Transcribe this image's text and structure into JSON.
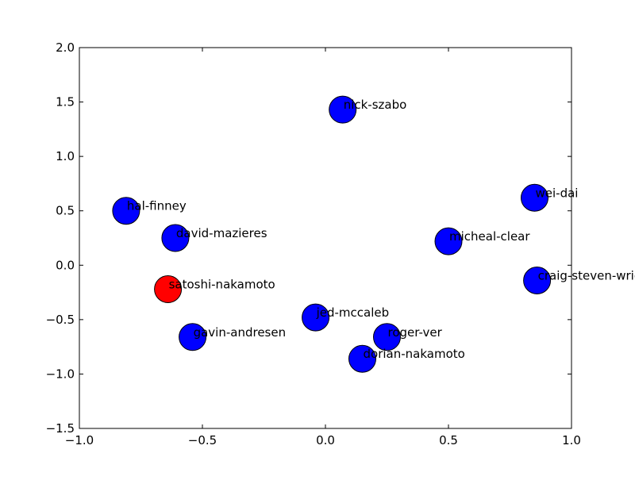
{
  "chart_data": {
    "type": "scatter",
    "title": "",
    "xlabel": "",
    "ylabel": "",
    "xlim": [
      -1.0,
      1.0
    ],
    "ylim": [
      -1.5,
      2.0
    ],
    "xticks": [
      -1.0,
      -0.5,
      0.0,
      0.5,
      1.0
    ],
    "xtick_labels": [
      "−1.0",
      "−0.5",
      "0.0",
      "0.5",
      "1.0"
    ],
    "yticks": [
      -1.5,
      -1.0,
      -0.5,
      0.0,
      0.5,
      1.0,
      1.5,
      2.0
    ],
    "ytick_labels": [
      "−1.5",
      "−1.0",
      "−0.5",
      "0.0",
      "0.5",
      "1.0",
      "1.5",
      "2.0"
    ],
    "grid": false,
    "colors": {
      "default": "#0000ff",
      "highlight": "#ff0000",
      "edge": "#000000"
    },
    "points": [
      {
        "label": "nick-szabo",
        "x": 0.07,
        "y": 1.43,
        "color": "#0000ff"
      },
      {
        "label": "wei-dai",
        "x": 0.85,
        "y": 0.62,
        "color": "#0000ff"
      },
      {
        "label": "hal-finney",
        "x": -0.81,
        "y": 0.5,
        "color": "#0000ff"
      },
      {
        "label": "david-mazieres",
        "x": -0.61,
        "y": 0.25,
        "color": "#0000ff"
      },
      {
        "label": "micheal-clear",
        "x": 0.5,
        "y": 0.22,
        "color": "#0000ff"
      },
      {
        "label": "craig-steven-wright",
        "x": 0.86,
        "y": -0.14,
        "color": "#0000ff"
      },
      {
        "label": "satoshi-nakamoto",
        "x": -0.64,
        "y": -0.22,
        "color": "#ff0000"
      },
      {
        "label": "jed-mccaleb",
        "x": -0.04,
        "y": -0.48,
        "color": "#0000ff"
      },
      {
        "label": "gavin-andresen",
        "x": -0.54,
        "y": -0.66,
        "color": "#0000ff"
      },
      {
        "label": "roger-ver",
        "x": 0.25,
        "y": -0.66,
        "color": "#0000ff"
      },
      {
        "label": "dorian-nakamoto",
        "x": 0.15,
        "y": -0.86,
        "color": "#0000ff"
      }
    ]
  }
}
